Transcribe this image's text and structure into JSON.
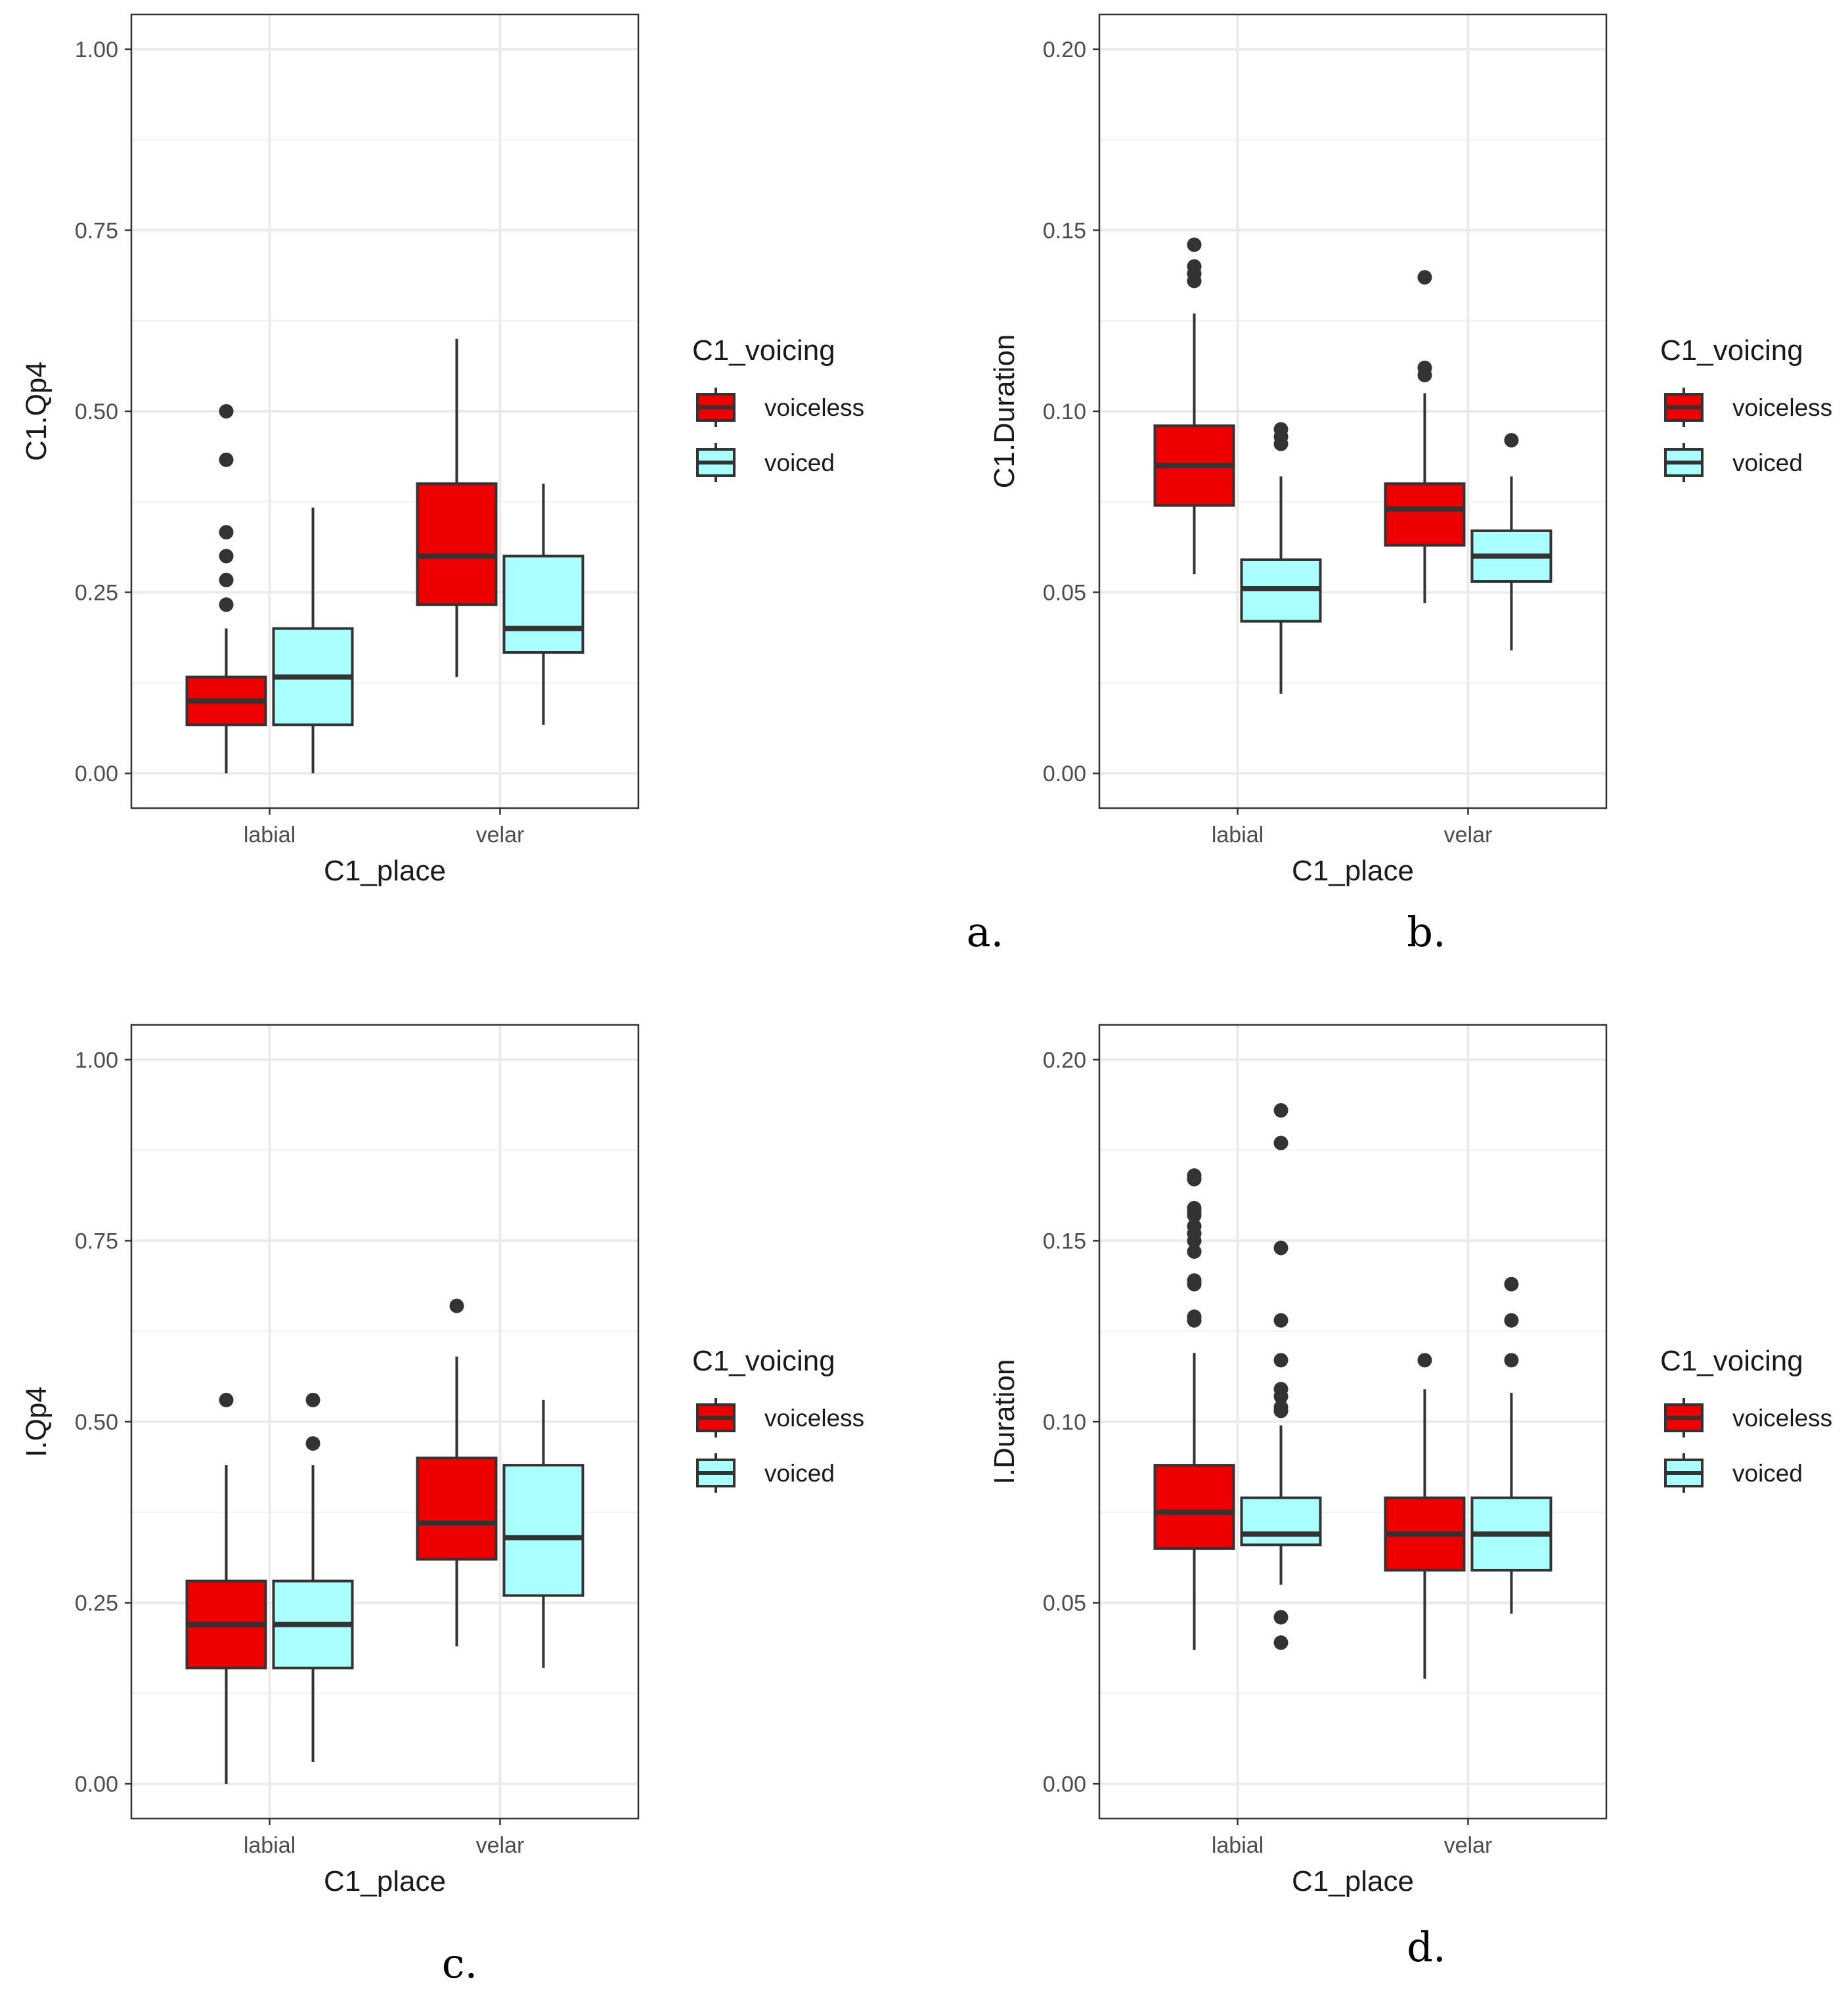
{
  "colors": {
    "voiceless": "#EE0000",
    "voiced": "#AAFFFF",
    "stroke": "#333333",
    "grid_major": "#EBEBEB",
    "grid_minor": "#F4F4F4",
    "panel_border": "#333333"
  },
  "chart_data": [
    {
      "type": "boxplot",
      "panel_label": "a.",
      "xlabel": "C1_place",
      "ylabel": "C1.Qp4",
      "ylim": [
        -0.048,
        1.048
      ],
      "yticks": [
        0.0,
        0.25,
        0.5,
        0.75,
        1.0
      ],
      "ytick_labels": [
        "0.00",
        "0.25",
        "0.50",
        "0.75",
        "1.00"
      ],
      "categories": [
        "labial",
        "velar"
      ],
      "legend": {
        "title": "C1_voicing",
        "entries": [
          "voiceless",
          "voiced"
        ],
        "position": "right"
      },
      "series": [
        {
          "name": "voiceless",
          "boxes": [
            {
              "category": "labial",
              "whisker_low": 0.0,
              "q1": 0.067,
              "median": 0.1,
              "q3": 0.133,
              "whisker_high": 0.2,
              "outliers": [
                0.233,
                0.267,
                0.3,
                0.333,
                0.433,
                0.5
              ]
            },
            {
              "category": "velar",
              "whisker_low": 0.133,
              "q1": 0.233,
              "median": 0.3,
              "q3": 0.4,
              "whisker_high": 0.6,
              "outliers": []
            }
          ]
        },
        {
          "name": "voiced",
          "boxes": [
            {
              "category": "labial",
              "whisker_low": 0.0,
              "q1": 0.067,
              "median": 0.133,
              "q3": 0.2,
              "whisker_high": 0.367,
              "outliers": []
            },
            {
              "category": "velar",
              "whisker_low": 0.067,
              "q1": 0.167,
              "median": 0.2,
              "q3": 0.3,
              "whisker_high": 0.4,
              "outliers": []
            }
          ]
        }
      ]
    },
    {
      "type": "boxplot",
      "panel_label": "b.",
      "xlabel": "C1_place",
      "ylabel": "C1.Duration",
      "ylim": [
        -0.0096,
        0.2096
      ],
      "yticks": [
        0.0,
        0.05,
        0.1,
        0.15,
        0.2
      ],
      "ytick_labels": [
        "0.00",
        "0.05",
        "0.10",
        "0.15",
        "0.20"
      ],
      "categories": [
        "labial",
        "velar"
      ],
      "legend": {
        "title": "C1_voicing",
        "entries": [
          "voiceless",
          "voiced"
        ],
        "position": "right"
      },
      "series": [
        {
          "name": "voiceless",
          "boxes": [
            {
              "category": "labial",
              "whisker_low": 0.055,
              "q1": 0.074,
              "median": 0.085,
              "q3": 0.096,
              "whisker_high": 0.127,
              "outliers": [
                0.136,
                0.138,
                0.14,
                0.146
              ]
            },
            {
              "category": "velar",
              "whisker_low": 0.047,
              "q1": 0.063,
              "median": 0.073,
              "q3": 0.08,
              "whisker_high": 0.105,
              "outliers": [
                0.11,
                0.112,
                0.137
              ]
            }
          ]
        },
        {
          "name": "voiced",
          "boxes": [
            {
              "category": "labial",
              "whisker_low": 0.022,
              "q1": 0.042,
              "median": 0.051,
              "q3": 0.059,
              "whisker_high": 0.082,
              "outliers": [
                0.091,
                0.093,
                0.095
              ]
            },
            {
              "category": "velar",
              "whisker_low": 0.034,
              "q1": 0.053,
              "median": 0.06,
              "q3": 0.067,
              "whisker_high": 0.082,
              "outliers": [
                0.092
              ]
            }
          ]
        }
      ]
    },
    {
      "type": "boxplot",
      "panel_label": "c.",
      "xlabel": "C1_place",
      "ylabel": "I.Qp4",
      "ylim": [
        -0.048,
        1.048
      ],
      "yticks": [
        0.0,
        0.25,
        0.5,
        0.75,
        1.0
      ],
      "ytick_labels": [
        "0.00",
        "0.25",
        "0.50",
        "0.75",
        "1.00"
      ],
      "categories": [
        "labial",
        "velar"
      ],
      "legend": {
        "title": "C1_voicing",
        "entries": [
          "voiceless",
          "voiced"
        ],
        "position": "right"
      },
      "series": [
        {
          "name": "voiceless",
          "boxes": [
            {
              "category": "labial",
              "whisker_low": 0.0,
              "q1": 0.16,
              "median": 0.22,
              "q3": 0.28,
              "whisker_high": 0.44,
              "outliers": [
                0.53
              ]
            },
            {
              "category": "velar",
              "whisker_low": 0.19,
              "q1": 0.31,
              "median": 0.36,
              "q3": 0.45,
              "whisker_high": 0.59,
              "outliers": [
                0.66
              ]
            }
          ]
        },
        {
          "name": "voiced",
          "boxes": [
            {
              "category": "labial",
              "whisker_low": 0.03,
              "q1": 0.16,
              "median": 0.22,
              "q3": 0.28,
              "whisker_high": 0.44,
              "outliers": [
                0.47,
                0.53
              ]
            },
            {
              "category": "velar",
              "whisker_low": 0.16,
              "q1": 0.26,
              "median": 0.34,
              "q3": 0.44,
              "whisker_high": 0.53,
              "outliers": []
            }
          ]
        }
      ]
    },
    {
      "type": "boxplot",
      "panel_label": "d.",
      "xlabel": "C1_place",
      "ylabel": "I.Duration",
      "ylim": [
        -0.0096,
        0.2096
      ],
      "yticks": [
        0.0,
        0.05,
        0.1,
        0.15,
        0.2
      ],
      "ytick_labels": [
        "0.00",
        "0.05",
        "0.10",
        "0.15",
        "0.20"
      ],
      "categories": [
        "labial",
        "velar"
      ],
      "legend": {
        "title": "C1_voicing",
        "entries": [
          "voiceless",
          "voiced"
        ],
        "position": "right"
      },
      "series": [
        {
          "name": "voiceless",
          "boxes": [
            {
              "category": "labial",
              "whisker_low": 0.037,
              "q1": 0.065,
              "median": 0.075,
              "q3": 0.088,
              "whisker_high": 0.119,
              "outliers": [
                0.128,
                0.129,
                0.138,
                0.139,
                0.147,
                0.15,
                0.152,
                0.154,
                0.157,
                0.158,
                0.159,
                0.167,
                0.168
              ]
            },
            {
              "category": "velar",
              "whisker_low": 0.029,
              "q1": 0.059,
              "median": 0.069,
              "q3": 0.079,
              "whisker_high": 0.109,
              "outliers": [
                0.117
              ]
            }
          ]
        },
        {
          "name": "voiced",
          "boxes": [
            {
              "category": "labial",
              "whisker_low": 0.055,
              "q1": 0.066,
              "median": 0.069,
              "q3": 0.079,
              "whisker_high": 0.099,
              "outliers": [
                0.039,
                0.046,
                0.103,
                0.104,
                0.107,
                0.109,
                0.117,
                0.128,
                0.148,
                0.177,
                0.186
              ]
            },
            {
              "category": "velar",
              "whisker_low": 0.047,
              "q1": 0.059,
              "median": 0.069,
              "q3": 0.079,
              "whisker_high": 0.108,
              "outliers": [
                0.117,
                0.128,
                0.138
              ]
            }
          ]
        }
      ]
    }
  ]
}
